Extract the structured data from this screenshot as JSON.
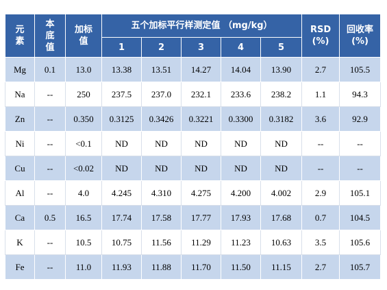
{
  "table": {
    "header": {
      "element": "元素",
      "background": "本底值",
      "spiked": "加标值",
      "parallel_title": "五个加标平行样测定值 （mg/kg）",
      "replicates": [
        "1",
        "2",
        "3",
        "4",
        "5"
      ],
      "rsd": "RSD (%)",
      "recovery": "回收率 (%)"
    },
    "rows": [
      [
        "Mg",
        "0.1",
        "13.0",
        "13.38",
        "13.51",
        "14.27",
        "14.04",
        "13.90",
        "2.7",
        "105.5"
      ],
      [
        "Na",
        "--",
        "250",
        "237.5",
        "237.0",
        "232.1",
        "233.6",
        "238.2",
        "1.1",
        "94.3"
      ],
      [
        "Zn",
        "--",
        "0.350",
        "0.3125",
        "0.3426",
        "0.3221",
        "0.3300",
        "0.3182",
        "3.6",
        "92.9"
      ],
      [
        "Ni",
        "--",
        "<0.1",
        "ND",
        "ND",
        "ND",
        "ND",
        "ND",
        "--",
        "--"
      ],
      [
        "Cu",
        "--",
        "<0.02",
        "ND",
        "ND",
        "ND",
        "ND",
        "ND",
        "--",
        "--"
      ],
      [
        "Al",
        "--",
        "4.0",
        "4.245",
        "4.310",
        "4.275",
        "4.200",
        "4.002",
        "2.9",
        "105.1"
      ],
      [
        "Ca",
        "0.5",
        "16.5",
        "17.74",
        "17.58",
        "17.77",
        "17.93",
        "17.68",
        "0.7",
        "104.5"
      ],
      [
        "K",
        "--",
        "10.5",
        "10.75",
        "11.56",
        "11.29",
        "11.23",
        "10.63",
        "3.5",
        "105.6"
      ],
      [
        "Fe",
        "--",
        "11.0",
        "11.93",
        "11.88",
        "11.70",
        "11.50",
        "11.15",
        "2.7",
        "105.7"
      ]
    ]
  }
}
